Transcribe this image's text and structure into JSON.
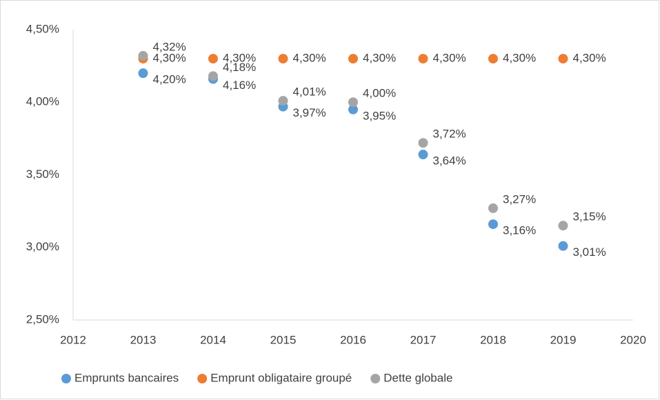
{
  "chart_data": {
    "type": "scatter",
    "xlim": [
      2012,
      2020
    ],
    "xticks": [
      2012,
      2013,
      2014,
      2015,
      2016,
      2017,
      2018,
      2019,
      2020
    ],
    "ylim": [
      2.5,
      4.5
    ],
    "yticks": [
      {
        "value": 2.5,
        "label": "2,50%"
      },
      {
        "value": 3,
        "label": "3,00%"
      },
      {
        "value": 3.5,
        "label": "3,50%"
      },
      {
        "value": 4,
        "label": "4,00%"
      },
      {
        "value": 4.5,
        "label": "4,50%"
      }
    ],
    "grid": false,
    "legend": "bottom",
    "x": [
      2013,
      2014,
      2015,
      2016,
      2017,
      2018,
      2019
    ],
    "series": [
      {
        "name": "Emprunts bancaires",
        "color": "#5b9bd5",
        "values": [
          4.2,
          4.16,
          3.97,
          3.95,
          3.64,
          3.16,
          3.01
        ],
        "value_labels": [
          "4,20%",
          "4,16%",
          "3,97%",
          "3,95%",
          "3,64%",
          "3,16%",
          "3,01%"
        ]
      },
      {
        "name": "Emprunt obligataire groupé",
        "color": "#ed7d31",
        "values": [
          4.3,
          4.3,
          4.3,
          4.3,
          4.3,
          4.3,
          4.3
        ],
        "value_labels": [
          "4,30%",
          "4,30%",
          "4,30%",
          "4,30%",
          "4,30%",
          "4,30%",
          "4,30%"
        ]
      },
      {
        "name": "Dette globale",
        "color": "#a5a5a5",
        "values": [
          4.32,
          4.18,
          4.01,
          4.0,
          3.72,
          3.27,
          3.15
        ],
        "value_labels": [
          "4,32%",
          "4,18%",
          "4,01%",
          "4,00%",
          "3,72%",
          "3,27%",
          "3,15%"
        ]
      }
    ]
  }
}
